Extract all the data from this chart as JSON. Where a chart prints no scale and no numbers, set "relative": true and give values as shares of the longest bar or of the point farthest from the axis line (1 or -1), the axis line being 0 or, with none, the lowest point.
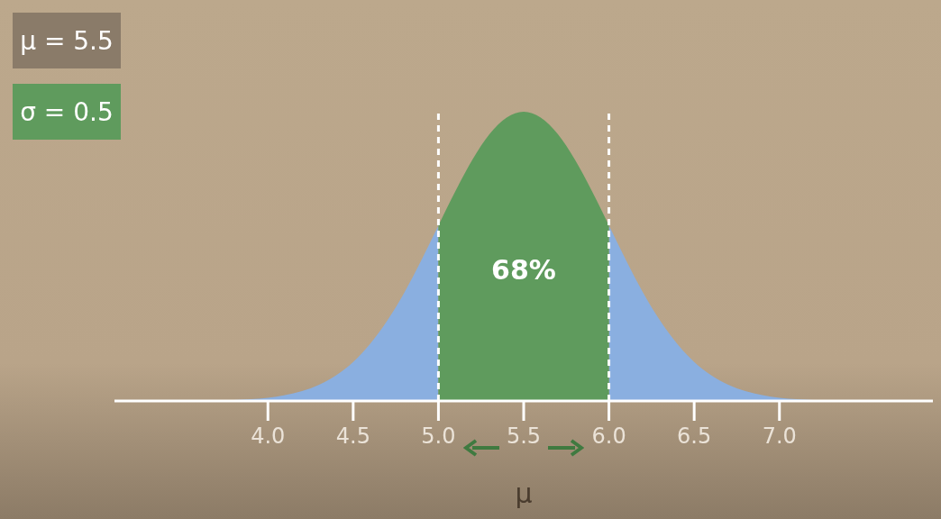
{
  "chart_data": {
    "type": "area",
    "relative": true,
    "xlabel": "μ",
    "x": [
      3.7,
      3.8,
      3.9,
      4.0,
      4.1,
      4.2,
      4.3,
      4.4,
      4.5,
      4.6,
      4.7,
      4.8,
      4.9,
      5.0,
      5.1,
      5.2,
      5.3,
      5.4,
      5.5,
      5.6,
      5.7,
      5.8,
      5.9,
      6.0,
      6.1,
      6.2,
      6.3,
      6.4,
      6.5,
      6.6,
      6.7,
      6.8,
      6.9,
      7.0,
      7.1,
      7.2,
      7.3
    ],
    "series": [
      {
        "color": "#8aafe0",
        "values": [
          0.002,
          0.003,
          0.006,
          0.011,
          0.02,
          0.034,
          0.056,
          0.089,
          0.135,
          0.198,
          0.278,
          0.375,
          0.487,
          0.607,
          null,
          null,
          null,
          null,
          null,
          null,
          null,
          null,
          null,
          0.607,
          0.487,
          0.375,
          0.278,
          0.198,
          0.135,
          0.089,
          0.056,
          0.034,
          0.02,
          0.011,
          0.006,
          0.003,
          0.002
        ]
      },
      {
        "color": "#5f9b5d",
        "values": [
          null,
          null,
          null,
          null,
          null,
          null,
          null,
          null,
          null,
          null,
          null,
          null,
          null,
          0.607,
          0.726,
          0.835,
          0.923,
          0.98,
          1,
          0.98,
          0.923,
          0.835,
          0.726,
          0.607,
          null,
          null,
          null,
          null,
          null,
          null,
          null,
          null,
          null,
          null,
          null,
          null,
          null
        ]
      }
    ],
    "xlim": [
      3.1,
      7.9
    ],
    "xticks": [
      {
        "value": 4,
        "label": "4.0"
      },
      {
        "value": 4.5,
        "label": "4.5"
      },
      {
        "value": 5,
        "label": "5.0"
      },
      {
        "value": 5.5,
        "label": "5.5"
      },
      {
        "value": 6,
        "label": "6.0"
      },
      {
        "value": 6.5,
        "label": "6.5"
      },
      {
        "value": 7,
        "label": "7.0"
      }
    ],
    "ref_lines": [
      {
        "axis": "x",
        "value": 5,
        "color": "#ffffff",
        "line_style": "dashed"
      },
      {
        "axis": "x",
        "value": 6,
        "color": "#ffffff",
        "line_style": "dashed"
      }
    ],
    "annotations": [
      "μ = 5.5",
      "σ = 0.5",
      "68%"
    ]
  }
}
